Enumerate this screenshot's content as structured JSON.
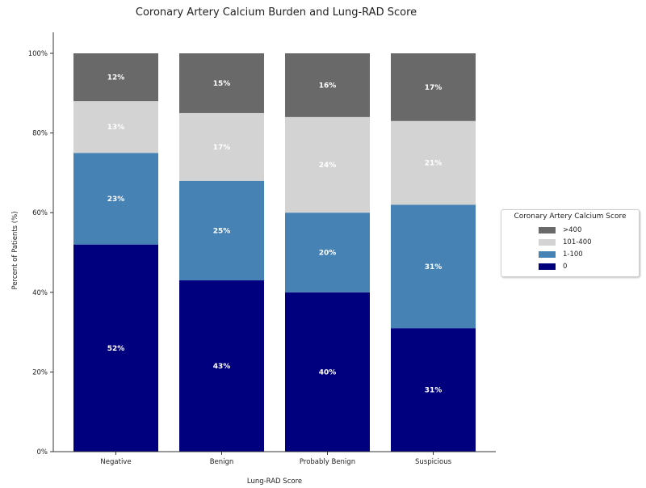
{
  "chart_data": {
    "type": "bar",
    "stacked": true,
    "title": "Coronary Artery Calcium Burden and Lung-RAD Score",
    "xlabel": "Lung-RAD Score",
    "ylabel": "Percent of Patients (%)",
    "ylim": [
      0,
      100
    ],
    "yticks": [
      "0%",
      "20%",
      "40%",
      "60%",
      "80%",
      "100%"
    ],
    "categories": [
      "Negative",
      "Benign",
      "Probably Benign",
      "Suspicious"
    ],
    "series": [
      {
        "name": "0",
        "color": "#00007f",
        "values": [
          52,
          43,
          40,
          31
        ],
        "labels": [
          "52%",
          "43%",
          "40%",
          "31%"
        ]
      },
      {
        "name": "1-100",
        "color": "#4682b4",
        "values": [
          23,
          25,
          20,
          31
        ],
        "labels": [
          "23%",
          "25%",
          "20%",
          "31%"
        ]
      },
      {
        "name": "101-400",
        "color": "#d3d3d3",
        "values": [
          13,
          17,
          24,
          21
        ],
        "labels": [
          "13%",
          "17%",
          "24%",
          "21%"
        ]
      },
      {
        "name": ">400",
        "color": "#696969",
        "values": [
          12,
          15,
          16,
          17
        ],
        "labels": [
          "12%",
          "15%",
          "16%",
          "17%"
        ]
      }
    ],
    "legend": {
      "title": "Coronary Artery Calcium Score",
      "placement": "right",
      "order": [
        ">400",
        "101-400",
        "1-100",
        "0"
      ]
    },
    "grid": false
  }
}
